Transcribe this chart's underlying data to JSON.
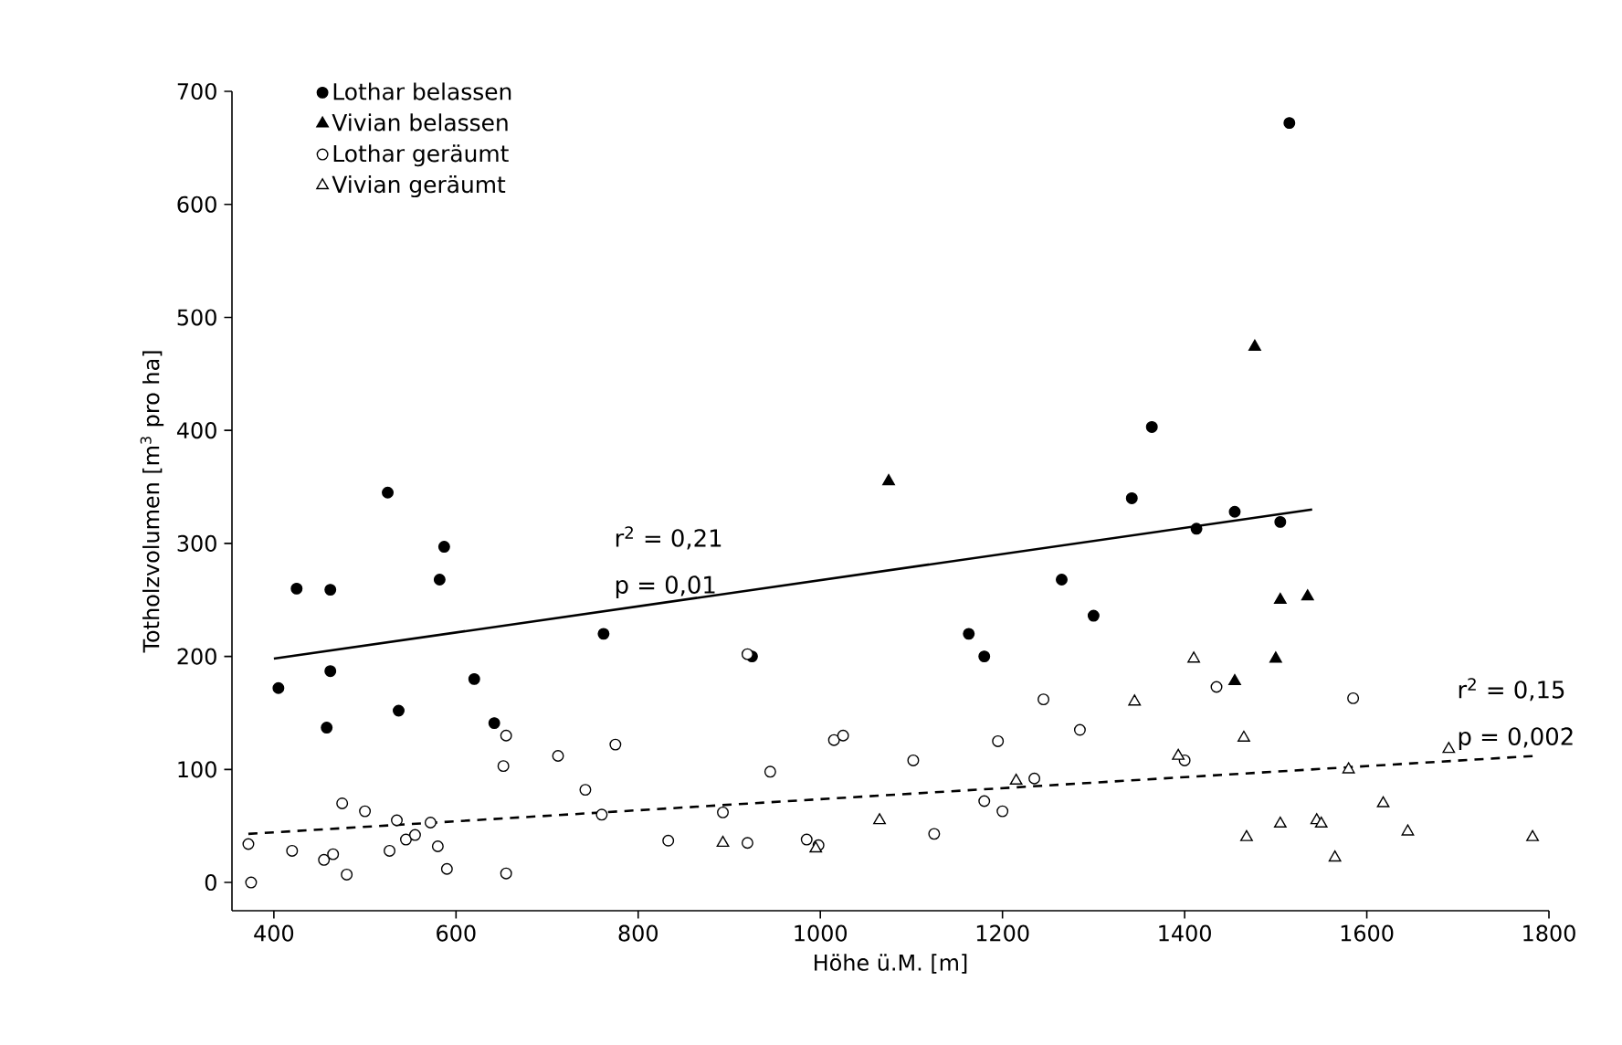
{
  "chart_data": {
    "type": "scatter",
    "xlabel": "Höhe ü.M. [m]",
    "ylabel": "Totholzvolumen [m$^{3}$ pro ha]",
    "xlim": [
      354,
      1800
    ],
    "ylim": [
      -25,
      700
    ],
    "xticks": [
      400,
      600,
      800,
      1000,
      1200,
      1400,
      1600,
      1800
    ],
    "yticks": [
      0,
      100,
      200,
      300,
      400,
      500,
      600,
      700
    ],
    "legend": "top left",
    "grid": false,
    "annotations": [
      "r$^{2}$ = 0,21",
      "p = 0,01",
      "r$^{2}$ = 0,15",
      "p = 0,002"
    ],
    "series": [
      {
        "name": "Lothar belassen",
        "marker": "circle",
        "color": "#000000",
        "x": [
          405,
          425,
          462,
          462,
          458,
          525,
          537,
          582,
          587,
          620,
          642,
          762,
          925,
          1163,
          1180,
          1265,
          1300,
          1342,
          1364,
          1413,
          1455,
          1505,
          1515
        ],
        "values": [
          172,
          260,
          259,
          187,
          137,
          345,
          152,
          268,
          297,
          180,
          141,
          220,
          200,
          220,
          200,
          268,
          236,
          340,
          403,
          313,
          328,
          319,
          672
        ]
      },
      {
        "name": "Vivian belassen",
        "marker": "triangle",
        "color": "#000000",
        "x": [
          1075,
          1477,
          1455,
          1505,
          1535,
          1500
        ],
        "values": [
          355,
          474,
          178,
          250,
          253,
          198
        ]
      },
      {
        "name": "Lothar geräumt",
        "marker": "circle",
        "color": "#000000",
        "x": [
          372,
          375,
          420,
          455,
          465,
          475,
          480,
          500,
          527,
          535,
          545,
          555,
          572,
          580,
          590,
          652,
          655,
          655,
          712,
          742,
          760,
          775,
          833,
          893,
          920,
          920,
          945,
          985,
          998,
          1015,
          1025,
          1102,
          1125,
          1180,
          1200,
          1195,
          1235,
          1245,
          1285,
          1400,
          1435,
          1585
        ],
        "values": [
          34,
          0,
          28,
          20,
          25,
          70,
          7,
          63,
          28,
          55,
          38,
          42,
          53,
          32,
          12,
          103,
          130,
          8,
          112,
          82,
          60,
          122,
          37,
          62,
          35,
          202,
          98,
          38,
          33,
          126,
          130,
          108,
          43,
          72,
          63,
          125,
          92,
          162,
          135,
          108,
          173,
          163
        ]
      },
      {
        "name": "Vivian geräumt",
        "marker": "triangle",
        "color": "#000000",
        "x": [
          893,
          995,
          1065,
          1215,
          1345,
          1393,
          1410,
          1465,
          1468,
          1505,
          1545,
          1550,
          1565,
          1580,
          1618,
          1645,
          1690,
          1782
        ],
        "values": [
          35,
          30,
          55,
          90,
          160,
          112,
          198,
          128,
          40,
          52,
          55,
          52,
          22,
          100,
          70,
          45,
          118,
          40
        ]
      },
      {
        "type": "line",
        "line_style": "solid",
        "marker": "none",
        "color": "#000000",
        "x": [
          400,
          1540
        ],
        "values": [
          198,
          330
        ]
      },
      {
        "type": "line",
        "line_style": "dashed",
        "marker": "none",
        "color": "#000000",
        "x": [
          372,
          1785
        ],
        "values": [
          43,
          112
        ]
      }
    ]
  }
}
